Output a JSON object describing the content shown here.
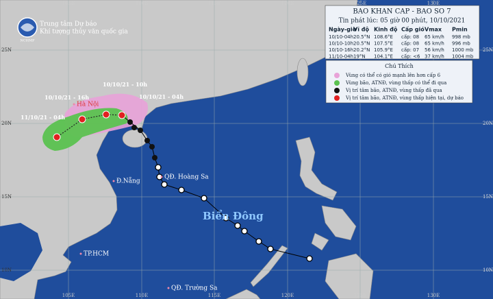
{
  "logo": {
    "line1": "Trung tâm Dự báo",
    "line2": "Khí tượng thủy văn quốc gia",
    "badge": "NCHMF"
  },
  "axes": {
    "lon": [
      "105E",
      "110E",
      "115E",
      "120E",
      "125E",
      "130E"
    ],
    "lat": [
      "25N",
      "20N",
      "15N",
      "10N"
    ]
  },
  "bulletin": {
    "title": "BAO KHAN CAP - BAO SO 7",
    "issued": "Tin phát lúc: 05 giờ 00 phút, 10/10/2021",
    "headers": [
      "Ngày-giờ",
      "Vĩ độ",
      "Kinh độ",
      "Cấp gió",
      "Vmax",
      "Pmin"
    ],
    "rows": [
      [
        "10/10-04h",
        "20.5°N",
        "108.6°E",
        "cấp: 08",
        "65 km/h",
        "998 mb"
      ],
      [
        "10/10-10h",
        "20.5°N",
        "107.5°E",
        "cấp: 08",
        "65 km/h",
        "996 mb"
      ],
      [
        "10/10-16h",
        "20.2°N",
        "105.9°E",
        "cấp: 07",
        "56 km/h",
        "1000 mb"
      ],
      [
        "11/10-04h",
        "19°N",
        "104.1°E",
        "cấp: <6",
        "37 km/h",
        "1004 mb"
      ]
    ]
  },
  "legend": {
    "title": "Chú Thích",
    "items": [
      "Vùng có thể có gió mạnh lên hơn cấp 6",
      "Vùng bão, ATNĐ, vùng thấp có thể đi qua",
      "Vị trí tâm bão, ATNĐ, vùng thấp đã qua",
      "Vị trí tâm bão, ATNĐ, vùng thấp hiện tại, dự báo"
    ]
  },
  "places": [
    "Hà Nội",
    "Đ.Nẵng",
    "QĐ. Hoàng Sa",
    "TP.HCM",
    "QĐ. Trường Sa",
    "Biển Đông"
  ],
  "forecast_labels": [
    "10/10/21 - 10h",
    "10/10/21 - 16h",
    "10/10/21 - 04h",
    "11/10/21 - 04h"
  ]
}
